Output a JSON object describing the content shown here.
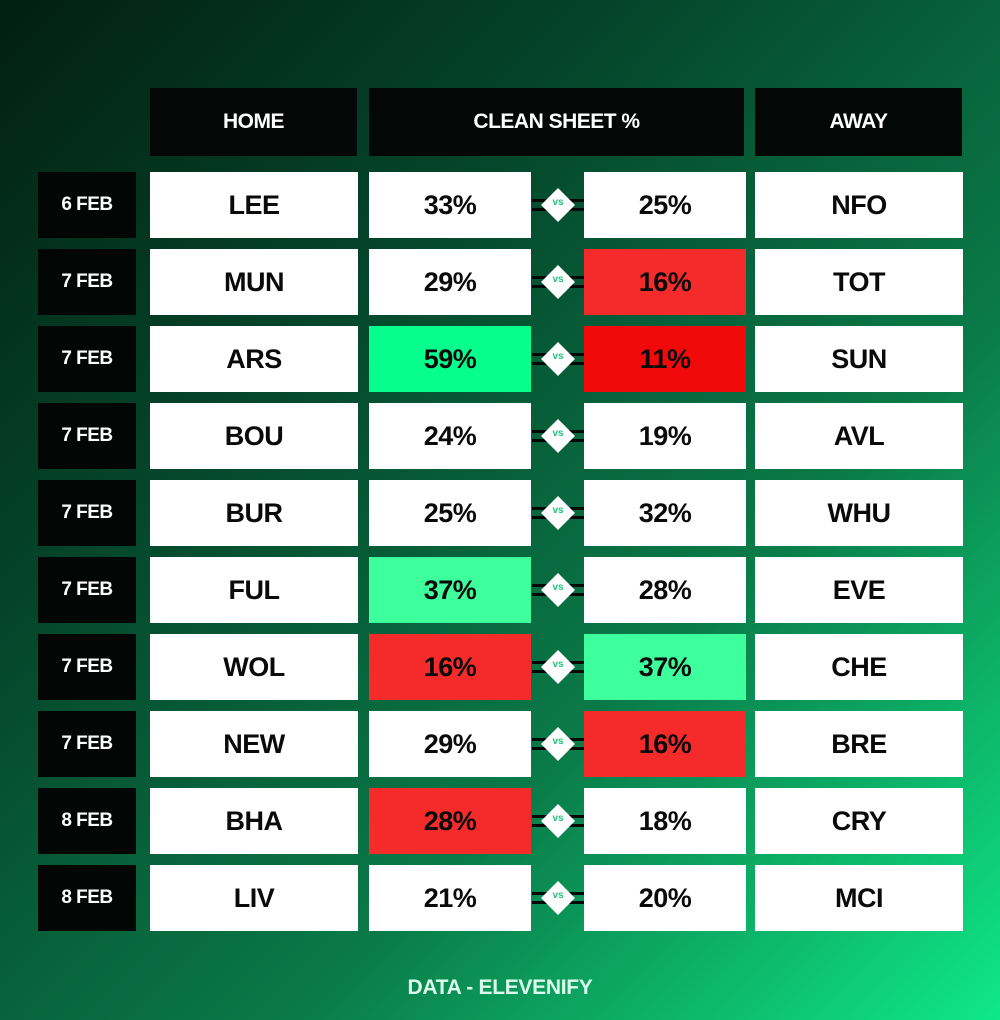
{
  "headers": {
    "home": "HOME",
    "clean_sheet": "CLEAN SHEET %",
    "away": "AWAY"
  },
  "vs_label": "vs",
  "colors": {
    "green_strong": "#06ff8c",
    "green_light": "#3dff9c",
    "red_strong": "#f20a0a",
    "red_light": "#f52a2a",
    "neutral": "#ffffff"
  },
  "fixtures": [
    {
      "date": "6 FEB",
      "home": "LEE",
      "home_pct": "33%",
      "away_pct": "25%",
      "away": "NFO",
      "home_color": "neutral",
      "away_color": "neutral"
    },
    {
      "date": "7 FEB",
      "home": "MUN",
      "home_pct": "29%",
      "away_pct": "16%",
      "away": "TOT",
      "home_color": "neutral",
      "away_color": "red_light"
    },
    {
      "date": "7 FEB",
      "home": "ARS",
      "home_pct": "59%",
      "away_pct": "11%",
      "away": "SUN",
      "home_color": "green_strong",
      "away_color": "red_strong"
    },
    {
      "date": "7 FEB",
      "home": "BOU",
      "home_pct": "24%",
      "away_pct": "19%",
      "away": "AVL",
      "home_color": "neutral",
      "away_color": "neutral"
    },
    {
      "date": "7 FEB",
      "home": "BUR",
      "home_pct": "25%",
      "away_pct": "32%",
      "away": "WHU",
      "home_color": "neutral",
      "away_color": "neutral"
    },
    {
      "date": "7 FEB",
      "home": "FUL",
      "home_pct": "37%",
      "away_pct": "28%",
      "away": "EVE",
      "home_color": "green_light",
      "away_color": "neutral"
    },
    {
      "date": "7 FEB",
      "home": "WOL",
      "home_pct": "16%",
      "away_pct": "37%",
      "away": "CHE",
      "home_color": "red_light",
      "away_color": "green_light"
    },
    {
      "date": "7 FEB",
      "home": "NEW",
      "home_pct": "29%",
      "away_pct": "16%",
      "away": "BRE",
      "home_color": "neutral",
      "away_color": "red_light"
    },
    {
      "date": "8 FEB",
      "home": "BHA",
      "home_pct": "28%",
      "away_pct": "18%",
      "away": "CRY",
      "home_color": "red_light",
      "away_color": "neutral"
    },
    {
      "date": "8 FEB",
      "home": "LIV",
      "home_pct": "21%",
      "away_pct": "20%",
      "away": "MCI",
      "home_color": "neutral",
      "away_color": "neutral"
    }
  ],
  "footer": "DATA - ELEVENIFY"
}
